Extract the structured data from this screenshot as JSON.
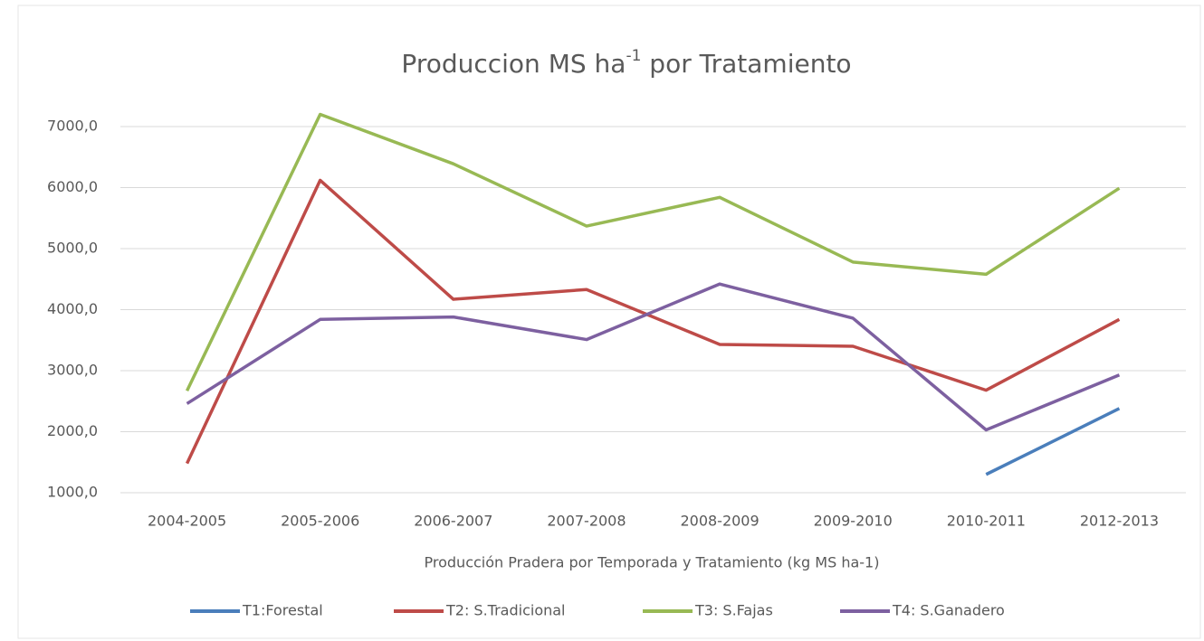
{
  "chart_data": {
    "type": "line",
    "title": {
      "main": "Produccion  MS ha",
      "superscript": "-1",
      "rest": " por Tratamiento"
    },
    "x_label": "Producción Pradera por Temporada y Tratamiento (kg MS ha-1)",
    "categories": [
      "2004-2005",
      "2005-2006",
      "2006-2007",
      "2007-2008",
      "2008-2009",
      "2009-2010",
      "2010-2011",
      "2012-2013"
    ],
    "series": [
      {
        "name": "T1:Forestal",
        "color": "#4a7ebb",
        "values": [
          null,
          null,
          null,
          null,
          null,
          null,
          1300,
          2380
        ]
      },
      {
        "name": "T2: S.Tradicional",
        "color": "#be4b48",
        "values": [
          1480,
          6120,
          4170,
          4330,
          3430,
          3400,
          2680,
          3840
        ]
      },
      {
        "name": "T3: S.Fajas",
        "color": "#98b954",
        "values": [
          2670,
          7200,
          6390,
          5370,
          5840,
          4780,
          4580,
          5990
        ]
      },
      {
        "name": "T4: S.Ganadero",
        "color": "#7d60a0",
        "values": [
          2460,
          3840,
          3880,
          3510,
          4420,
          3860,
          2030,
          2930
        ]
      }
    ],
    "ylim": [
      1000,
      7000
    ],
    "yticks": [
      {
        "value": 1000,
        "label": "1000,0"
      },
      {
        "value": 2000,
        "label": "2000,0"
      },
      {
        "value": 3000,
        "label": "3000,0"
      },
      {
        "value": 4000,
        "label": "4000,0"
      },
      {
        "value": 5000,
        "label": "5000,0"
      },
      {
        "value": 6000,
        "label": "6000,0"
      },
      {
        "value": 7000,
        "label": "7000,0"
      }
    ],
    "grid": true,
    "legend": "bottom"
  }
}
